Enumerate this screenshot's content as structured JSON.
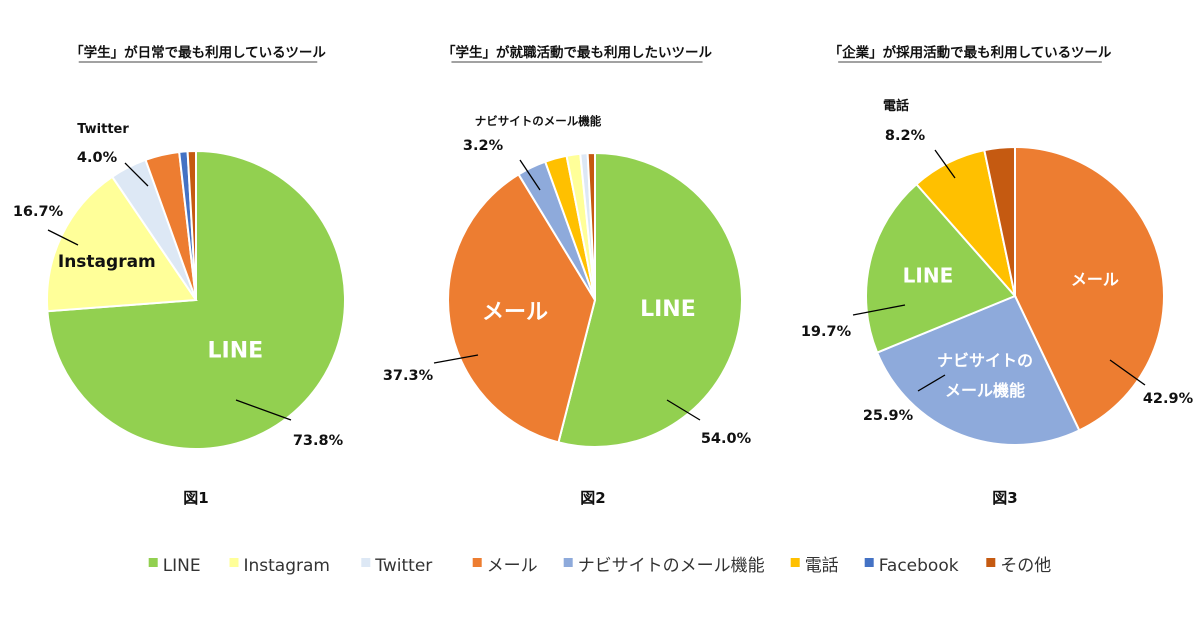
{
  "colors": {
    "LINE": "#92d050",
    "Instagram": "#ffff99",
    "Twitter": "#dde8f5",
    "mail": "#ed7d31",
    "navi": "#8eaadb",
    "phone": "#ffc000",
    "Facebook": "#4472c4",
    "other": "#c55a11"
  },
  "legend": [
    {
      "label": "LINE",
      "color_key": "LINE"
    },
    {
      "label": "Instagram",
      "color_key": "Instagram"
    },
    {
      "label": "Twitter",
      "color_key": "Twitter"
    },
    {
      "label": "メール",
      "color_key": "mail"
    },
    {
      "label": "ナビサイトのメール機能",
      "color_key": "navi"
    },
    {
      "label": "電話",
      "color_key": "phone"
    },
    {
      "label": "Facebook",
      "color_key": "Facebook"
    },
    {
      "label": "その他",
      "color_key": "other"
    }
  ],
  "chart_data": [
    {
      "type": "pie",
      "title": "「学生」が日常で最も利用しているツール",
      "caption": "図1",
      "slices": [
        {
          "name": "LINE",
          "color_key": "LINE",
          "value": 73.8,
          "pct_label": "73.8%",
          "inside_label": "LINE"
        },
        {
          "name": "Instagram",
          "color_key": "Instagram",
          "value": 16.7,
          "pct_label": "16.7%",
          "inside_label": "Instagram"
        },
        {
          "name": "Twitter",
          "color_key": "Twitter",
          "value": 4.0,
          "pct_label": "4.0%",
          "outside_name": "Twitter"
        },
        {
          "name": "メール",
          "color_key": "mail",
          "value": 3.7
        },
        {
          "name": "Facebook",
          "color_key": "Facebook",
          "value": 0.9
        },
        {
          "name": "その他",
          "color_key": "other",
          "value": 0.9
        }
      ]
    },
    {
      "type": "pie",
      "title": "「学生」が就職活動で最も利用したいツール",
      "caption": "図2",
      "slices": [
        {
          "name": "LINE",
          "color_key": "LINE",
          "value": 54.0,
          "pct_label": "54.0%",
          "inside_label": "LINE"
        },
        {
          "name": "メール",
          "color_key": "mail",
          "value": 37.3,
          "pct_label": "37.3%",
          "inside_label": "メール"
        },
        {
          "name": "ナビサイトのメール機能",
          "color_key": "navi",
          "value": 3.2,
          "pct_label": "3.2%",
          "outside_name": "ナビサイトのメール機能"
        },
        {
          "name": "電話",
          "color_key": "phone",
          "value": 2.4
        },
        {
          "name": "Instagram",
          "color_key": "Instagram",
          "value": 1.5
        },
        {
          "name": "Twitter",
          "color_key": "Twitter",
          "value": 0.8
        },
        {
          "name": "その他",
          "color_key": "other",
          "value": 0.8
        }
      ]
    },
    {
      "type": "pie",
      "title": "「企業」が採用活動で最も利用しているツール",
      "caption": "図3",
      "slices": [
        {
          "name": "メール",
          "color_key": "mail",
          "value": 42.9,
          "pct_label": "42.9%",
          "inside_label": "メール"
        },
        {
          "name": "ナビサイトのメール機能",
          "color_key": "navi",
          "value": 25.9,
          "pct_label": "25.9%",
          "inside_label": "ナビサイトの\nメール機能"
        },
        {
          "name": "LINE",
          "color_key": "LINE",
          "value": 19.7,
          "pct_label": "19.7%",
          "inside_label": "LINE"
        },
        {
          "name": "電話",
          "color_key": "phone",
          "value": 8.2,
          "pct_label": "8.2%",
          "outside_name": "電話"
        },
        {
          "name": "その他",
          "color_key": "other",
          "value": 3.3
        }
      ]
    }
  ]
}
